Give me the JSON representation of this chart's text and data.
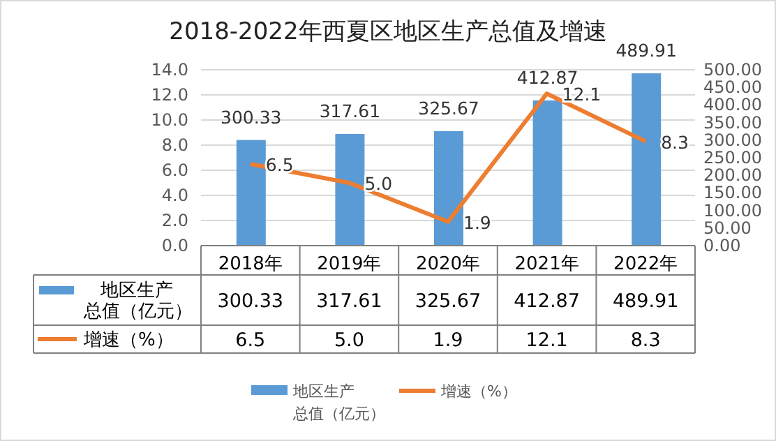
{
  "chart_data": {
    "type": "bar",
    "title": "2018-2022年西夏区地区生产总值及增速",
    "categories": [
      "2018年",
      "2019年",
      "2020年",
      "2021年",
      "2022年"
    ],
    "series": [
      {
        "name": "地区生产总值（亿元）",
        "axis": "y2",
        "color": "#5b9bd5",
        "values": [
          300.33,
          317.61,
          325.67,
          412.87,
          489.91
        ],
        "value_labels": [
          "300.33",
          "317.61",
          "325.67",
          "412.87",
          "489.91"
        ]
      },
      {
        "name": "增速（%）",
        "type": "line",
        "color": "#ed7d31",
        "values": [
          6.5,
          5.0,
          1.9,
          12.1,
          8.3
        ],
        "value_labels": [
          "6.5",
          "5.0",
          "1.9",
          "12.1",
          "8.3"
        ]
      }
    ],
    "ylim": [
      0,
      14
    ],
    "yticks": [
      "0.0",
      "2.0",
      "4.0",
      "6.0",
      "8.0",
      "10.0",
      "12.0",
      "14.0"
    ],
    "y2lim": [
      0,
      500
    ],
    "y2ticks": [
      "0.00",
      "50.00",
      "100.00",
      "150.00",
      "200.00",
      "250.00",
      "300.00",
      "350.00",
      "400.00",
      "450.00",
      "500.00"
    ],
    "grid": "y",
    "legend": "bottom",
    "marker": "none"
  }
}
